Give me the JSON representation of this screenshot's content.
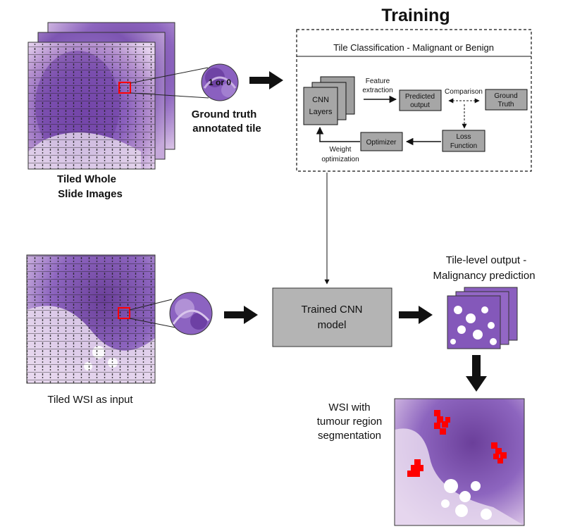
{
  "title": "Training",
  "training_box": {
    "heading": "Tile Classification - Malignant or Benign",
    "cnn_layers": [
      "CNN",
      "Layers"
    ],
    "feature_extraction": [
      "Feature",
      "extraction"
    ],
    "predicted_output": [
      "Predicted",
      "output"
    ],
    "comparison": "Comparison",
    "ground_truth": [
      "Ground",
      "Truth"
    ],
    "loss_function": [
      "Loss",
      "Function"
    ],
    "optimizer": "Optimizer",
    "weight_optimization": [
      "Weight",
      "optimization"
    ]
  },
  "tile_badge": "1 or 0",
  "ground_truth_label": [
    "Ground truth",
    "annotated tile"
  ],
  "tiled_wsi_label": [
    "Tiled Whole",
    "Slide Images"
  ],
  "input_label": "Tiled WSI as input",
  "trained_model": [
    "Trained CNN",
    "model"
  ],
  "tile_output_label": [
    "Tile-level output -",
    "Malignancy prediction"
  ],
  "segmentation_label": [
    "WSI with",
    "tumour region",
    "segmentation"
  ],
  "colors": {
    "box_fill": "#a6a6a6",
    "model_fill": "#b4b4b4",
    "tissue_dark": "#6b3f9a",
    "tissue_light": "#c9a6d8",
    "annotation_red": "#ff0000"
  }
}
